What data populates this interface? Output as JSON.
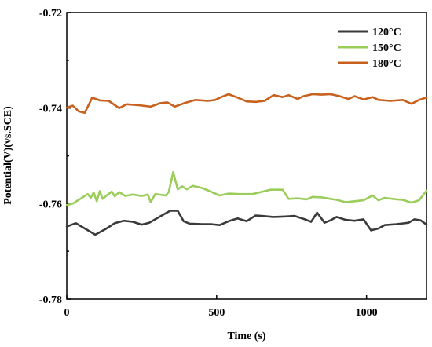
{
  "chart_data": {
    "type": "line",
    "title": "",
    "xlabel": "Time (s)",
    "ylabel": "Potential(V)(vs.SCE)",
    "xlim": [
      0,
      1200
    ],
    "ylim": [
      -0.78,
      -0.72
    ],
    "xticks": [
      0,
      500,
      1000
    ],
    "xtick_labels": [
      "0",
      "500",
      "1000"
    ],
    "yticks": [
      -0.72,
      -0.74,
      -0.76,
      -0.78
    ],
    "ytick_labels": [
      "-0.72",
      "-0.74",
      "-0.76",
      "-0.78"
    ],
    "grid": false,
    "legend_position": "top-right",
    "series": [
      {
        "name": "120°C",
        "color": "#3a3a3a",
        "points": [
          [
            0,
            -0.7648
          ],
          [
            30,
            -0.7641
          ],
          [
            60,
            -0.7652
          ],
          [
            95,
            -0.7665
          ],
          [
            130,
            -0.7653
          ],
          [
            160,
            -0.7641
          ],
          [
            190,
            -0.7636
          ],
          [
            220,
            -0.7638
          ],
          [
            250,
            -0.7644
          ],
          [
            275,
            -0.764
          ],
          [
            300,
            -0.7631
          ],
          [
            320,
            -0.7624
          ],
          [
            345,
            -0.7615
          ],
          [
            370,
            -0.7615
          ],
          [
            390,
            -0.7637
          ],
          [
            410,
            -0.7642
          ],
          [
            450,
            -0.7643
          ],
          [
            480,
            -0.7643
          ],
          [
            510,
            -0.7645
          ],
          [
            540,
            -0.7637
          ],
          [
            570,
            -0.7631
          ],
          [
            600,
            -0.7637
          ],
          [
            630,
            -0.7625
          ],
          [
            650,
            -0.7626
          ],
          [
            690,
            -0.7628
          ],
          [
            730,
            -0.7627
          ],
          [
            760,
            -0.7626
          ],
          [
            790,
            -0.7632
          ],
          [
            815,
            -0.7638
          ],
          [
            835,
            -0.7619
          ],
          [
            860,
            -0.764
          ],
          [
            880,
            -0.7635
          ],
          [
            900,
            -0.7628
          ],
          [
            930,
            -0.7634
          ],
          [
            960,
            -0.7636
          ],
          [
            990,
            -0.7633
          ],
          [
            1015,
            -0.7656
          ],
          [
            1040,
            -0.7652
          ],
          [
            1060,
            -0.7645
          ],
          [
            1100,
            -0.7643
          ],
          [
            1140,
            -0.764
          ],
          [
            1160,
            -0.7633
          ],
          [
            1180,
            -0.7635
          ],
          [
            1200,
            -0.7644
          ]
        ]
      },
      {
        "name": "150°C",
        "color": "#9acd5a",
        "points": [
          [
            0,
            -0.7603
          ],
          [
            20,
            -0.76
          ],
          [
            45,
            -0.759
          ],
          [
            70,
            -0.758
          ],
          [
            80,
            -0.7588
          ],
          [
            90,
            -0.7577
          ],
          [
            100,
            -0.7595
          ],
          [
            110,
            -0.7574
          ],
          [
            120,
            -0.759
          ],
          [
            135,
            -0.7582
          ],
          [
            150,
            -0.7575
          ],
          [
            160,
            -0.7585
          ],
          [
            175,
            -0.7576
          ],
          [
            195,
            -0.7584
          ],
          [
            220,
            -0.7581
          ],
          [
            250,
            -0.7584
          ],
          [
            270,
            -0.7581
          ],
          [
            280,
            -0.7597
          ],
          [
            295,
            -0.758
          ],
          [
            330,
            -0.7583
          ],
          [
            340,
            -0.7576
          ],
          [
            355,
            -0.7534
          ],
          [
            370,
            -0.757
          ],
          [
            385,
            -0.7564
          ],
          [
            400,
            -0.757
          ],
          [
            420,
            -0.7563
          ],
          [
            450,
            -0.7567
          ],
          [
            480,
            -0.7575
          ],
          [
            510,
            -0.7583
          ],
          [
            540,
            -0.7579
          ],
          [
            575,
            -0.758
          ],
          [
            620,
            -0.758
          ],
          [
            660,
            -0.7574
          ],
          [
            680,
            -0.7571
          ],
          [
            720,
            -0.7571
          ],
          [
            740,
            -0.759
          ],
          [
            770,
            -0.7589
          ],
          [
            800,
            -0.7591
          ],
          [
            820,
            -0.7586
          ],
          [
            850,
            -0.7587
          ],
          [
            880,
            -0.759
          ],
          [
            900,
            -0.7592
          ],
          [
            930,
            -0.7597
          ],
          [
            960,
            -0.7595
          ],
          [
            990,
            -0.7593
          ],
          [
            1020,
            -0.7583
          ],
          [
            1040,
            -0.7593
          ],
          [
            1060,
            -0.7588
          ],
          [
            1100,
            -0.7591
          ],
          [
            1120,
            -0.7592
          ],
          [
            1150,
            -0.7598
          ],
          [
            1175,
            -0.7593
          ],
          [
            1200,
            -0.7573
          ]
        ]
      },
      {
        "name": "180°C",
        "color": "#c8611e",
        "points": [
          [
            0,
            -0.7399
          ],
          [
            20,
            -0.7395
          ],
          [
            40,
            -0.7407
          ],
          [
            60,
            -0.741
          ],
          [
            85,
            -0.7378
          ],
          [
            110,
            -0.7384
          ],
          [
            140,
            -0.7385
          ],
          [
            175,
            -0.74
          ],
          [
            200,
            -0.7392
          ],
          [
            240,
            -0.7394
          ],
          [
            280,
            -0.7397
          ],
          [
            310,
            -0.739
          ],
          [
            335,
            -0.7388
          ],
          [
            360,
            -0.7397
          ],
          [
            395,
            -0.7389
          ],
          [
            430,
            -0.7383
          ],
          [
            470,
            -0.7385
          ],
          [
            495,
            -0.7383
          ],
          [
            515,
            -0.7377
          ],
          [
            540,
            -0.7371
          ],
          [
            570,
            -0.7378
          ],
          [
            600,
            -0.7386
          ],
          [
            630,
            -0.7387
          ],
          [
            660,
            -0.7385
          ],
          [
            690,
            -0.7373
          ],
          [
            720,
            -0.7377
          ],
          [
            740,
            -0.7373
          ],
          [
            770,
            -0.7381
          ],
          [
            790,
            -0.7375
          ],
          [
            820,
            -0.7371
          ],
          [
            850,
            -0.7372
          ],
          [
            880,
            -0.7371
          ],
          [
            910,
            -0.7375
          ],
          [
            940,
            -0.7381
          ],
          [
            960,
            -0.7375
          ],
          [
            990,
            -0.7382
          ],
          [
            1020,
            -0.7377
          ],
          [
            1040,
            -0.7383
          ],
          [
            1080,
            -0.7385
          ],
          [
            1120,
            -0.7383
          ],
          [
            1150,
            -0.7391
          ],
          [
            1175,
            -0.7383
          ],
          [
            1200,
            -0.7378
          ]
        ]
      }
    ]
  }
}
